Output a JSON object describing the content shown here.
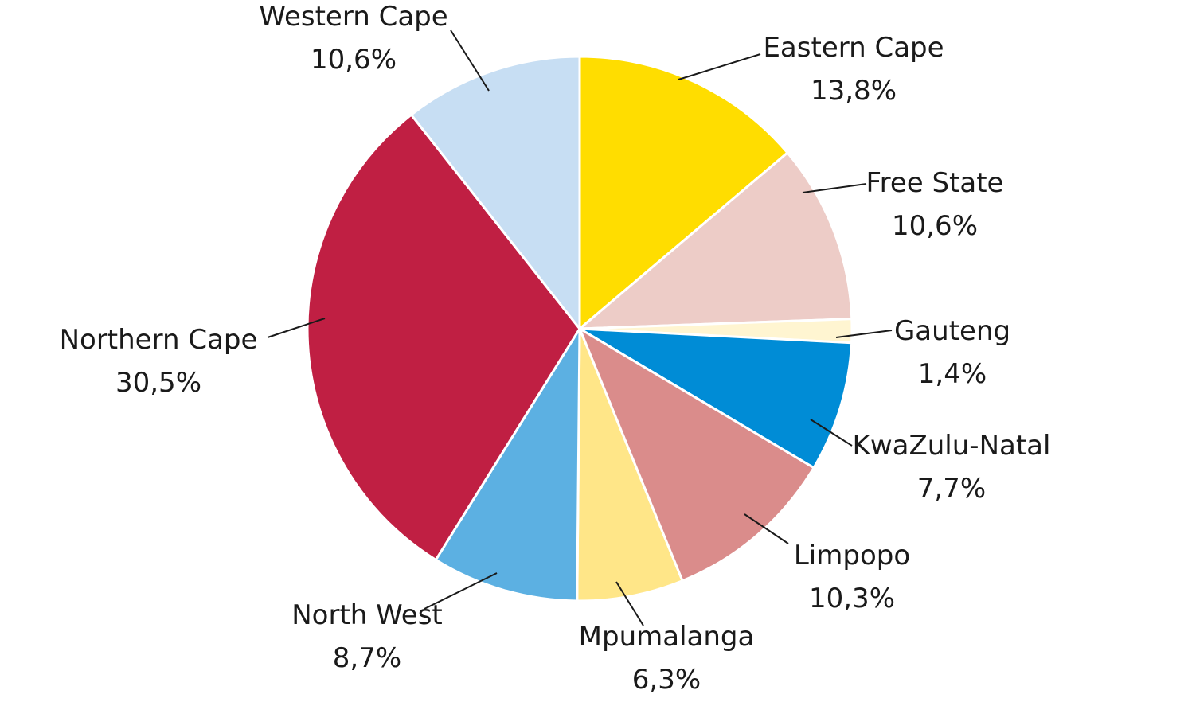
{
  "chart_data": {
    "type": "pie",
    "title": "",
    "start": "top",
    "direction": "clockwise",
    "legend": "none",
    "slices": [
      {
        "label": "Eastern Cape",
        "value": 13.8,
        "value_label": "13,8%",
        "color": "#FFDD00"
      },
      {
        "label": "Free State",
        "value": 10.6,
        "value_label": "10,6%",
        "color": "#EDCCC7"
      },
      {
        "label": "Gauteng",
        "value": 1.4,
        "value_label": "1,4%",
        "color": "#FFF5D1"
      },
      {
        "label": "KwaZulu-Natal",
        "value": 7.7,
        "value_label": "7,7%",
        "color": "#008CD6"
      },
      {
        "label": "Limpopo",
        "value": 10.3,
        "value_label": "10,3%",
        "color": "#DA8C8B"
      },
      {
        "label": "Mpumalanga",
        "value": 6.3,
        "value_label": "6,3%",
        "color": "#FFE688"
      },
      {
        "label": "North West",
        "value": 8.7,
        "value_label": "8,7%",
        "color": "#5CB0E2"
      },
      {
        "label": "Northern Cape",
        "value": 30.5,
        "value_label": "30,5%",
        "color": "#C01F43"
      },
      {
        "label": "Western Cape",
        "value": 10.6,
        "value_label": "10,6%",
        "color": "#C7DEF3"
      }
    ]
  }
}
